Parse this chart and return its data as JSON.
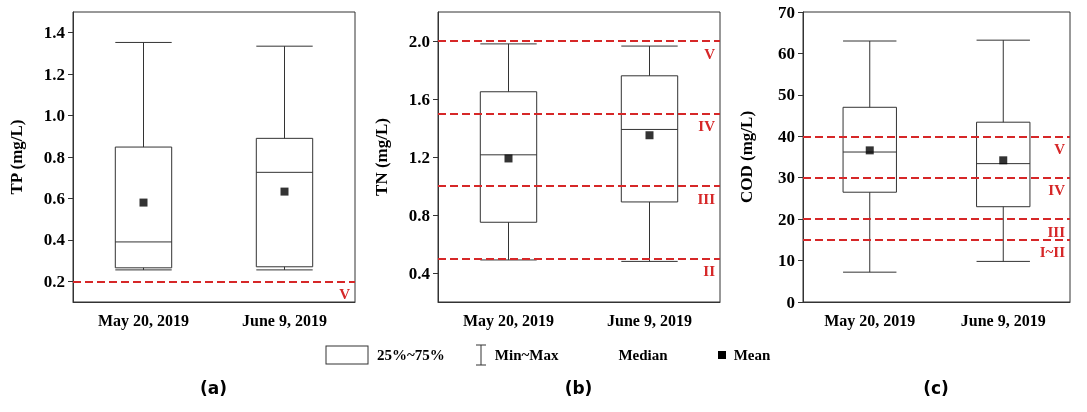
{
  "chart_data": [
    {
      "type": "box",
      "ylabel": "TP (mg/L)",
      "categories": [
        "May 20, 2019",
        "June 9, 2019"
      ],
      "boxes": [
        {
          "low": 0.255,
          "q1": 0.265,
          "median": 0.39,
          "q3": 0.848,
          "high": 1.353,
          "mean": 0.58
        },
        {
          "low": 0.255,
          "q1": 0.27,
          "median": 0.726,
          "q3": 0.89,
          "high": 1.335,
          "mean": 0.633
        }
      ],
      "ylim": [
        0.1,
        1.5
      ],
      "yticks": [
        0.2,
        0.4,
        0.6,
        0.8,
        {
          "value": 1,
          "label": "1.0"
        },
        1.2,
        1.4
      ],
      "ref_lines": [
        {
          "axis": "y",
          "value": 0.2,
          "label": "V",
          "color": "#d62728",
          "line_style": "dashed"
        }
      ],
      "annotations": [
        "(a)"
      ]
    },
    {
      "type": "box",
      "ylabel": "TN (mg/L)",
      "categories": [
        "May 20, 2019",
        "June 9, 2019"
      ],
      "boxes": [
        {
          "low": 0.49,
          "q1": 0.75,
          "median": 1.215,
          "q3": 1.65,
          "high": 1.98,
          "mean": 1.19
        },
        {
          "low": 0.48,
          "q1": 0.89,
          "median": 1.39,
          "q3": 1.76,
          "high": 1.965,
          "mean": 1.35
        }
      ],
      "ylim": [
        0.2,
        2.2
      ],
      "yticks": [
        0.4,
        0.8,
        1.2,
        1.6,
        {
          "value": 2,
          "label": "2.0"
        }
      ],
      "ref_lines": [
        {
          "axis": "y",
          "value": 2.0,
          "label": "V",
          "color": "#d62728",
          "line_style": "dashed"
        },
        {
          "axis": "y",
          "value": 1.5,
          "label": "IV",
          "color": "#d62728",
          "line_style": "dashed"
        },
        {
          "axis": "y",
          "value": 1.0,
          "label": "III",
          "color": "#d62728",
          "line_style": "dashed"
        },
        {
          "axis": "y",
          "value": 0.5,
          "label": "II",
          "color": "#d62728",
          "line_style": "dashed"
        }
      ],
      "annotations": [
        "25%~75%",
        "Min~Max",
        "Median",
        "Mean",
        "(b)"
      ]
    },
    {
      "type": "box",
      "ylabel": "COD (mg/L)",
      "categories": [
        "May 20, 2019",
        "June 9, 2019"
      ],
      "boxes": [
        {
          "low": 7.2,
          "q1": 26.5,
          "median": 36.2,
          "q3": 47,
          "high": 63,
          "mean": 36.6
        },
        {
          "low": 9.8,
          "q1": 23,
          "median": 33.4,
          "q3": 43.4,
          "high": 63.2,
          "mean": 34.2
        }
      ],
      "ylim": [
        0,
        70
      ],
      "yticks": [
        0,
        10,
        20,
        30,
        40,
        50,
        60,
        70
      ],
      "ref_lines": [
        {
          "axis": "y",
          "value": 40,
          "label": "V",
          "color": "#d62728",
          "line_style": "dashed"
        },
        {
          "axis": "y",
          "value": 30,
          "label": "IV",
          "color": "#d62728",
          "line_style": "dashed"
        },
        {
          "axis": "y",
          "value": 20,
          "label": "III",
          "color": "#d62728",
          "line_style": "dashed"
        },
        {
          "axis": "y",
          "value": 15,
          "label": "I~II",
          "color": "#d62728",
          "line_style": "dashed"
        }
      ],
      "annotations": [
        "(c)"
      ]
    }
  ]
}
